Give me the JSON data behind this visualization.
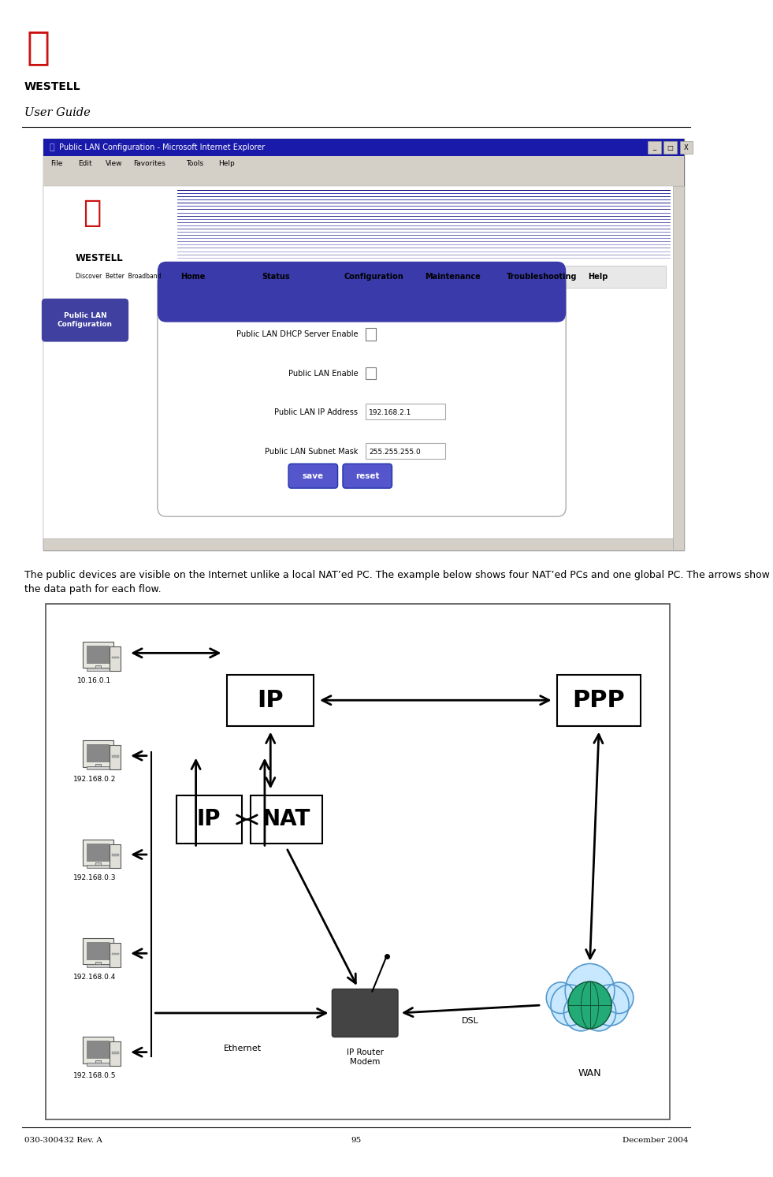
{
  "page_width": 9.81,
  "page_height": 14.93,
  "bg_color": "#ffffff",
  "footer_left": "030-300432 Rev. A",
  "footer_center": "95",
  "footer_right": "December 2004",
  "header_title": "User Guide",
  "body_text": "The public devices are visible on the Internet unlike a local NAT’ed PC. The example below shows four NAT’ed PCs and one global PC. The arrows show the data path for each flow.",
  "browser_title": "Public LAN Configuration - Microsoft Internet Explorer",
  "browser_menu_items": [
    "File",
    "Edit",
    "View",
    "Favorites",
    "Tools",
    "Help"
  ],
  "nav_items": [
    "Home",
    "Status",
    "Configuration",
    "Maintenance",
    "Troubleshooting",
    "Help"
  ],
  "sidebar_label": "Public LAN\nConfiguration",
  "form_fields": [
    {
      "label": "Public LAN DHCP Server Enable",
      "type": "checkbox",
      "value": ""
    },
    {
      "label": "Public LAN Enable",
      "type": "checkbox",
      "value": ""
    },
    {
      "label": "Public LAN IP Address",
      "type": "text",
      "value": "192.168.2.1"
    },
    {
      "label": "Public LAN Subnet Mask",
      "type": "text",
      "value": "255.255.255.0"
    }
  ],
  "diagram_pcs": [
    {
      "label": "10.16.0.1"
    },
    {
      "label": "192.168.0.2"
    },
    {
      "label": "192.168.0.3"
    },
    {
      "label": "192.168.0.4"
    },
    {
      "label": "192.168.0.5"
    }
  ],
  "colors": {
    "title_bar": "#1a1aaa",
    "menu_bar": "#d4d0c8",
    "content_bg": "#ffffff",
    "sidebar_btn": "#4040a0",
    "form_panel_top": "#3a3aaa",
    "form_panel_bg": "#ffffff",
    "btn_save": "#5555cc",
    "btn_reset": "#5555cc",
    "stripe_dark": "#000077",
    "stripe_light": "#3333aa",
    "nav_bg": "#e8e8e8"
  }
}
